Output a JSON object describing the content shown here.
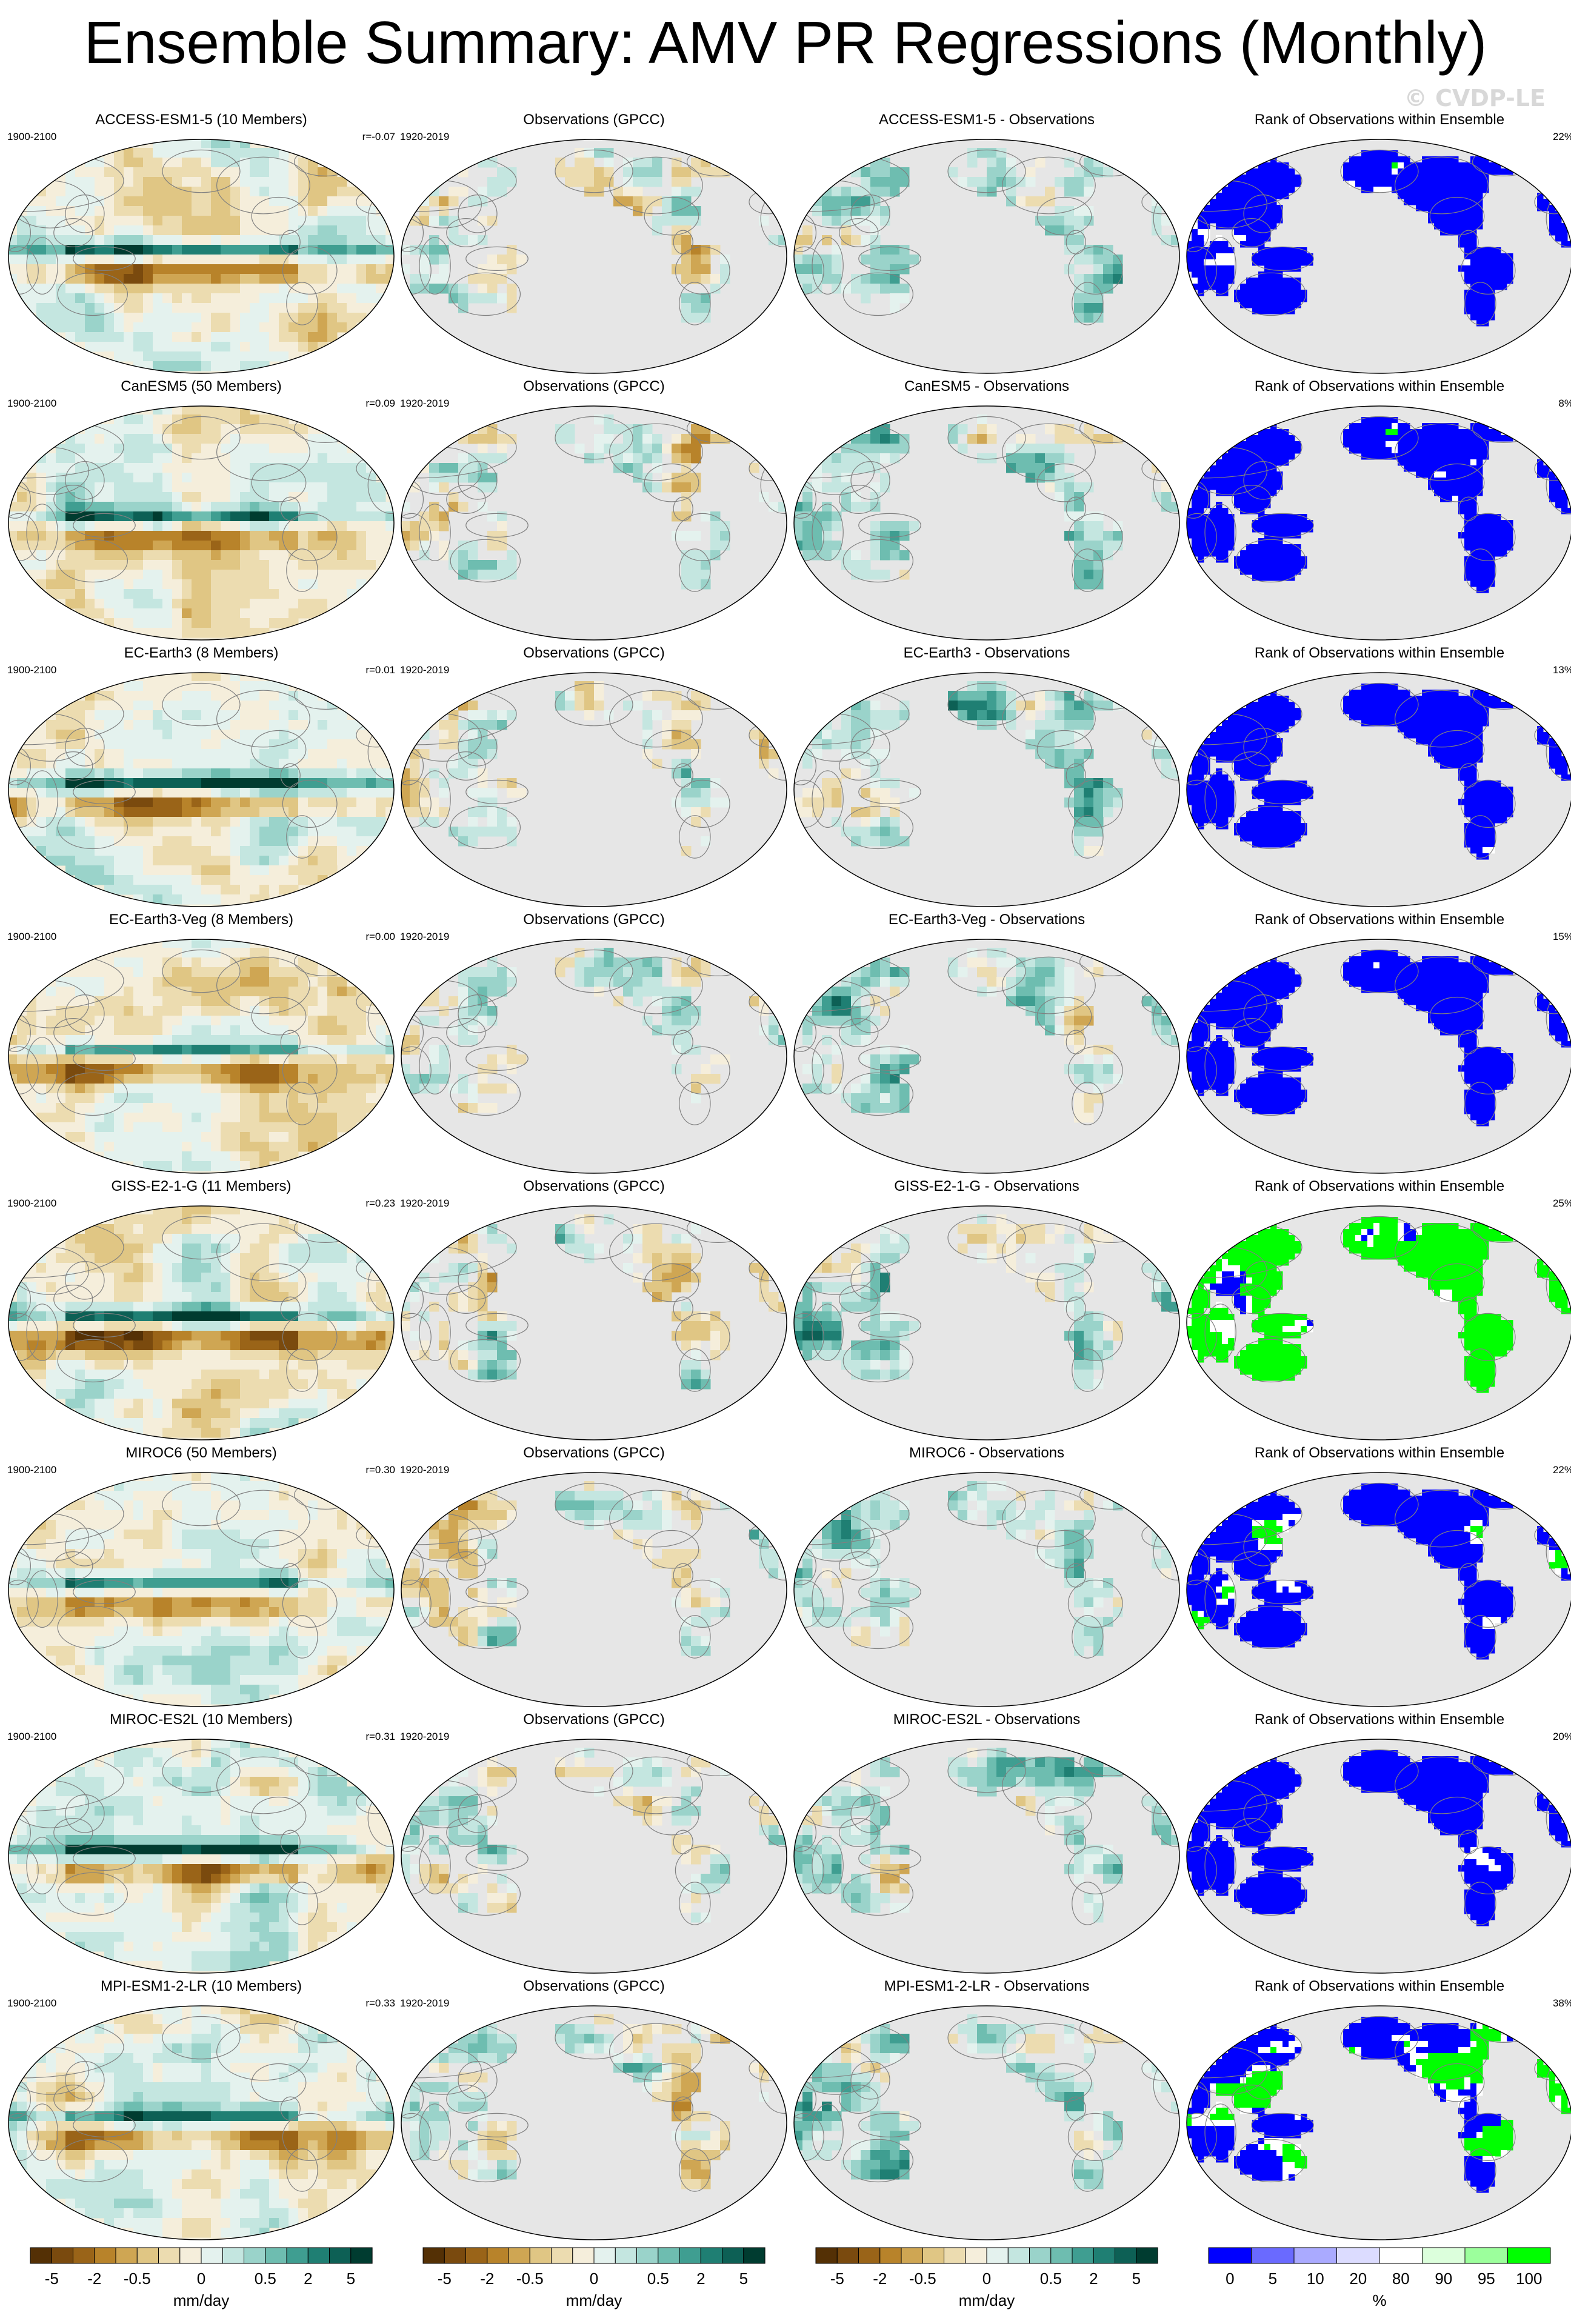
{
  "title": "Ensemble Summary: AMV PR Regressions (Monthly)",
  "watermark": "© CVDP-LE",
  "chart_data": {
    "type": "map",
    "columns": [
      "ensemble_mean",
      "observations",
      "difference",
      "rank"
    ],
    "rows": [
      {
        "model": {
          "title": "ACCESS-ESM1-5 (10 Members)",
          "period": "1900-2100",
          "r": "r=-0.07",
          "pattern": 0
        },
        "obs": {
          "title": "Observations (GPCC)",
          "period": "1920-2019"
        },
        "diff": {
          "title": "ACCESS-ESM1-5 - Observations"
        },
        "rank": {
          "title": "Rank of Observations within Ensemble",
          "pct": "22%",
          "blueness": 0.75
        }
      },
      {
        "model": {
          "title": "CanESM5 (50 Members)",
          "period": "1900-2100",
          "r": "r=0.09",
          "pattern": 1
        },
        "obs": {
          "title": "Observations (GPCC)",
          "period": "1920-2019"
        },
        "diff": {
          "title": "CanESM5 - Observations"
        },
        "rank": {
          "title": "Rank of Observations within Ensemble",
          "pct": "8%",
          "blueness": 0.85
        }
      },
      {
        "model": {
          "title": "EC-Earth3 (8 Members)",
          "period": "1900-2100",
          "r": "r=0.01",
          "pattern": 2
        },
        "obs": {
          "title": "Observations (GPCC)",
          "period": "1920-2019"
        },
        "diff": {
          "title": "EC-Earth3 - Observations"
        },
        "rank": {
          "title": "Rank of Observations within Ensemble",
          "pct": "13%",
          "blueness": 0.88
        }
      },
      {
        "model": {
          "title": "EC-Earth3-Veg (8 Members)",
          "period": "1900-2100",
          "r": "r=0.00",
          "pattern": 3
        },
        "obs": {
          "title": "Observations (GPCC)",
          "period": "1920-2019"
        },
        "diff": {
          "title": "EC-Earth3-Veg - Observations"
        },
        "rank": {
          "title": "Rank of Observations within Ensemble",
          "pct": "15%",
          "blueness": 0.85
        }
      },
      {
        "model": {
          "title": "GISS-E2-1-G (11 Members)",
          "period": "1900-2100",
          "r": "r=0.23",
          "pattern": 4
        },
        "obs": {
          "title": "Observations (GPCC)",
          "period": "1920-2019"
        },
        "diff": {
          "title": "GISS-E2-1-G - Observations"
        },
        "rank": {
          "title": "Rank of Observations within Ensemble",
          "pct": "25%",
          "blueness": 0.3
        }
      },
      {
        "model": {
          "title": "MIROC6 (50 Members)",
          "period": "1900-2100",
          "r": "r=0.30",
          "pattern": 5
        },
        "obs": {
          "title": "Observations (GPCC)",
          "period": "1920-2019"
        },
        "diff": {
          "title": "MIROC6 - Observations"
        },
        "rank": {
          "title": "Rank of Observations within Ensemble",
          "pct": "22%",
          "blueness": 0.72
        }
      },
      {
        "model": {
          "title": "MIROC-ES2L (10 Members)",
          "period": "1900-2100",
          "r": "r=0.31",
          "pattern": 6
        },
        "obs": {
          "title": "Observations (GPCC)",
          "period": "1920-2019"
        },
        "diff": {
          "title": "MIROC-ES2L - Observations"
        },
        "rank": {
          "title": "Rank of Observations within Ensemble",
          "pct": "20%",
          "blueness": 0.8
        }
      },
      {
        "model": {
          "title": "MPI-ESM1-2-LR (10 Members)",
          "period": "1900-2100",
          "r": "r=0.33",
          "pattern": 7
        },
        "obs": {
          "title": "Observations (GPCC)",
          "period": "1920-2019"
        },
        "diff": {
          "title": "MPI-ESM1-2-LR - Observations"
        },
        "rank": {
          "title": "Rank of Observations within Ensemble",
          "pct": "38%",
          "blueness": 0.55
        }
      }
    ],
    "colorbars": [
      {
        "unit": "mm/day",
        "labels": [
          "-5",
          "-2",
          "-0.5",
          "0",
          "0.5",
          "2",
          "5"
        ],
        "colors": [
          "#543005",
          "#7a4a0e",
          "#9a6418",
          "#b8832a",
          "#cfa653",
          "#e0c684",
          "#ecdcb0",
          "#f5eedb",
          "#e4f2ee",
          "#c4e6e0",
          "#9ad3ca",
          "#6ebdb0",
          "#3f9e91",
          "#1f7f73",
          "#0d6055",
          "#003c30"
        ]
      },
      {
        "unit": "mm/day",
        "labels": [
          "-5",
          "-2",
          "-0.5",
          "0",
          "0.5",
          "2",
          "5"
        ],
        "colors": [
          "#543005",
          "#7a4a0e",
          "#9a6418",
          "#b8832a",
          "#cfa653",
          "#e0c684",
          "#ecdcb0",
          "#f5eedb",
          "#e4f2ee",
          "#c4e6e0",
          "#9ad3ca",
          "#6ebdb0",
          "#3f9e91",
          "#1f7f73",
          "#0d6055",
          "#003c30"
        ]
      },
      {
        "unit": "mm/day",
        "labels": [
          "-5",
          "-2",
          "-0.5",
          "0",
          "0.5",
          "2",
          "5"
        ],
        "colors": [
          "#543005",
          "#7a4a0e",
          "#9a6418",
          "#b8832a",
          "#cfa653",
          "#e0c684",
          "#ecdcb0",
          "#f5eedb",
          "#e4f2ee",
          "#c4e6e0",
          "#9ad3ca",
          "#6ebdb0",
          "#3f9e91",
          "#1f7f73",
          "#0d6055",
          "#003c30"
        ]
      },
      {
        "unit": "%",
        "labels": [
          "0",
          "5",
          "10",
          "20",
          "80",
          "90",
          "95",
          "100"
        ],
        "colors": [
          "#0000ff",
          "#6a6aff",
          "#aaaaff",
          "#dcdcff",
          "#ffffff",
          "#dcffdc",
          "#9cff9c",
          "#00ff00"
        ]
      }
    ]
  }
}
